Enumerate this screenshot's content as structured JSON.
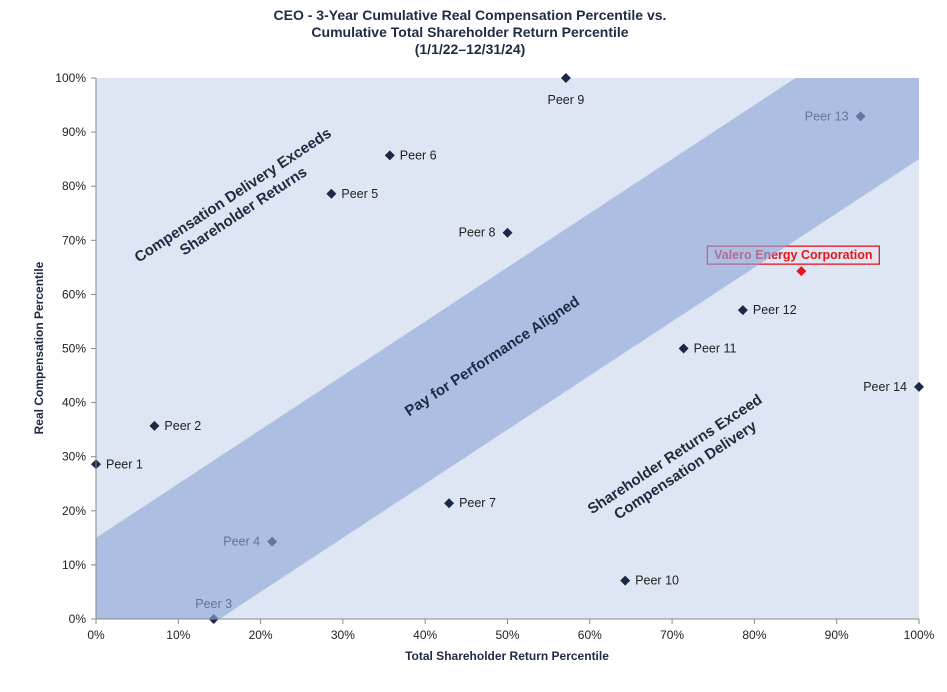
{
  "chart_data": {
    "type": "scatter",
    "title": [
      "CEO - 3-Year Cumulative Real Compensation Percentile vs.",
      "Cumulative Total Shareholder Return Percentile",
      "(1/1/22–12/31/24)"
    ],
    "xlabel": "Total Shareholder Return Percentile",
    "ylabel": "Real Compensation Percentile",
    "xlim": [
      0,
      100
    ],
    "ylim": [
      0,
      100
    ],
    "xticks": [
      "0%",
      "10%",
      "20%",
      "30%",
      "40%",
      "50%",
      "60%",
      "70%",
      "80%",
      "90%",
      "100%"
    ],
    "yticks": [
      "0%",
      "10%",
      "20%",
      "30%",
      "40%",
      "50%",
      "60%",
      "70%",
      "80%",
      "90%",
      "100%"
    ],
    "grid": false,
    "band": {
      "offset": 15,
      "label": "Pay for Performance Aligned"
    },
    "regions": {
      "upper": [
        "Compensation Delivery Exceeds",
        "Shareholder Returns"
      ],
      "lower": [
        "Shareholder Returns Exceed",
        "Compensation Delivery"
      ]
    },
    "colors": {
      "background": "#dee6f3",
      "band": "#8fa4d8",
      "marker": "#1c2847",
      "highlight": "#e8141c"
    },
    "points": [
      {
        "name": "Peer 1",
        "x": 0,
        "y": 28.6,
        "label_side": "right"
      },
      {
        "name": "Peer 2",
        "x": 7.1,
        "y": 35.7,
        "label_side": "right"
      },
      {
        "name": "Peer 3",
        "x": 14.3,
        "y": 0,
        "label_side": "above"
      },
      {
        "name": "Peer 4",
        "x": 21.4,
        "y": 14.3,
        "label_side": "left"
      },
      {
        "name": "Peer 5",
        "x": 28.6,
        "y": 78.6,
        "label_side": "right"
      },
      {
        "name": "Peer 6",
        "x": 35.7,
        "y": 85.7,
        "label_side": "right"
      },
      {
        "name": "Peer 7",
        "x": 42.9,
        "y": 21.4,
        "label_side": "right"
      },
      {
        "name": "Peer 8",
        "x": 50,
        "y": 71.4,
        "label_side": "left"
      },
      {
        "name": "Peer 9",
        "x": 57.1,
        "y": 100,
        "label_side": "below"
      },
      {
        "name": "Peer 10",
        "x": 64.3,
        "y": 7.1,
        "label_side": "right"
      },
      {
        "name": "Peer 11",
        "x": 71.4,
        "y": 50,
        "label_side": "right"
      },
      {
        "name": "Peer 12",
        "x": 78.6,
        "y": 57.1,
        "label_side": "right"
      },
      {
        "name": "Peer 13",
        "x": 92.9,
        "y": 92.9,
        "label_side": "left"
      },
      {
        "name": "Peer 14",
        "x": 100,
        "y": 42.9,
        "label_side": "left"
      },
      {
        "name": "Valero Energy Corporation",
        "x": 85.7,
        "y": 64.3,
        "label_side": "above",
        "highlight": true
      }
    ]
  }
}
